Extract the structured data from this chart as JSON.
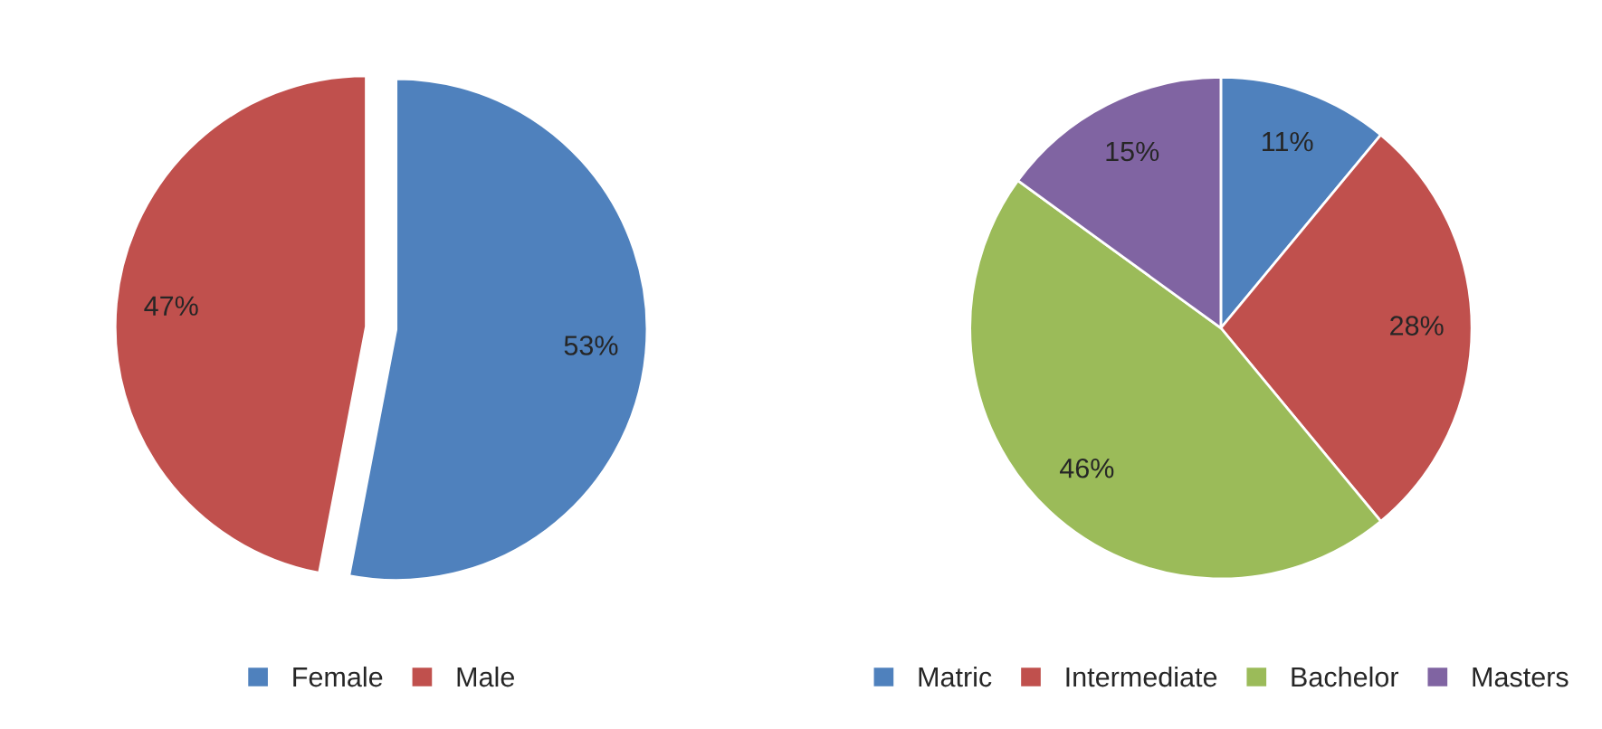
{
  "chart_data": [
    {
      "type": "pie",
      "categories": [
        "Female",
        "Male"
      ],
      "values": [
        53,
        47
      ],
      "colors": [
        "#4f81bd",
        "#c0504d"
      ],
      "value_labels": [
        "53%",
        "47%"
      ],
      "legend": "bottom"
    },
    {
      "type": "pie",
      "categories": [
        "Matric",
        "Intermediate",
        "Bachelor",
        "Masters"
      ],
      "values": [
        11,
        28,
        46,
        15
      ],
      "colors": [
        "#4f81bd",
        "#c0504d",
        "#9bbb59",
        "#8064a2"
      ],
      "value_labels": [
        "11%",
        "28%",
        "46%",
        "15%"
      ],
      "legend": "bottom"
    }
  ]
}
